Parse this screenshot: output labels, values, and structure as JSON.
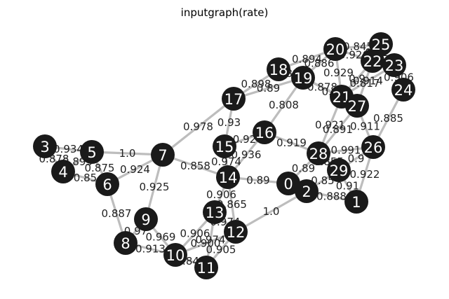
{
  "title": "inputgraph(rate)",
  "colors": {
    "edge": "#bdbdbd",
    "node": "#1a1a1a",
    "node_text": "#ffffff"
  },
  "graph": {
    "nodes": [
      "0",
      "1",
      "2",
      "3",
      "4",
      "5",
      "6",
      "7",
      "8",
      "9",
      "10",
      "11",
      "12",
      "13",
      "14",
      "15",
      "16",
      "17",
      "18",
      "19",
      "20",
      "21",
      "22",
      "23",
      "24",
      "25",
      "26",
      "27",
      "28",
      "29"
    ],
    "edges": [
      {
        "source": "3",
        "target": "5",
        "label": "0.934"
      },
      {
        "source": "3",
        "target": "4",
        "label": "0.878"
      },
      {
        "source": "4",
        "target": "5",
        "label": "0.893"
      },
      {
        "source": "4",
        "target": "6",
        "label": "0.85"
      },
      {
        "source": "5",
        "target": "7",
        "label": "1.0"
      },
      {
        "source": "5",
        "target": "6",
        "label": "0.875"
      },
      {
        "source": "6",
        "target": "7",
        "label": "0.924"
      },
      {
        "source": "6",
        "target": "8",
        "label": "0.887"
      },
      {
        "source": "7",
        "target": "9",
        "label": "0.925"
      },
      {
        "source": "7",
        "target": "17",
        "label": "0.978"
      },
      {
        "source": "7",
        "target": "14",
        "label": "0.858"
      },
      {
        "source": "8",
        "target": "9",
        "label": "0.97"
      },
      {
        "source": "8",
        "target": "10",
        "label": "0.913"
      },
      {
        "source": "9",
        "target": "10",
        "label": "0.969"
      },
      {
        "source": "10",
        "target": "13",
        "label": "0.906"
      },
      {
        "source": "10",
        "target": "12",
        "label": "0.900"
      },
      {
        "source": "10",
        "target": "11",
        "label": "0.841"
      },
      {
        "source": "11",
        "target": "12",
        "label": "0.905"
      },
      {
        "source": "11",
        "target": "13",
        "label": "0.974"
      },
      {
        "source": "12",
        "target": "13",
        "label": "0.974"
      },
      {
        "source": "12",
        "target": "14",
        "label": "0.865"
      },
      {
        "source": "12",
        "target": "2",
        "label": "1.0"
      },
      {
        "source": "13",
        "target": "14",
        "label": "0.906"
      },
      {
        "source": "14",
        "target": "15",
        "label": "0.974"
      },
      {
        "source": "14",
        "target": "0",
        "label": "0.89"
      },
      {
        "source": "14",
        "target": "16",
        "label": "0.936"
      },
      {
        "source": "15",
        "target": "16",
        "label": "0.92"
      },
      {
        "source": "15",
        "target": "17",
        "label": "0.93"
      },
      {
        "source": "17",
        "target": "18",
        "label": "0.898"
      },
      {
        "source": "17",
        "target": "19",
        "label": "0.89"
      },
      {
        "source": "16",
        "target": "19",
        "label": "0.808"
      },
      {
        "source": "16",
        "target": "28",
        "label": "0.919"
      },
      {
        "source": "18",
        "target": "19",
        "label": "0.894"
      },
      {
        "source": "18",
        "target": "20",
        "label": "0.894"
      },
      {
        "source": "19",
        "target": "20",
        "label": "0.886"
      },
      {
        "source": "19",
        "target": "21",
        "label": "0.878"
      },
      {
        "source": "19",
        "target": "27",
        "label": "0.8"
      },
      {
        "source": "20",
        "target": "22",
        "label": "0.926"
      },
      {
        "source": "20",
        "target": "25",
        "label": "0.845"
      },
      {
        "source": "20",
        "target": "21",
        "label": "0.929"
      },
      {
        "source": "21",
        "target": "22",
        "label": "0.9"
      },
      {
        "source": "21",
        "target": "23",
        "label": "0.914"
      },
      {
        "source": "21",
        "target": "28",
        "label": "0.921"
      },
      {
        "source": "22",
        "target": "25",
        "label": "0.91"
      },
      {
        "source": "22",
        "target": "23",
        "label": "0.83"
      },
      {
        "source": "22",
        "target": "27",
        "label": "0.817"
      },
      {
        "source": "23",
        "target": "24",
        "label": "0.906"
      },
      {
        "source": "24",
        "target": "26",
        "label": "0.885"
      },
      {
        "source": "27",
        "target": "26",
        "label": "0.911"
      },
      {
        "source": "27",
        "target": "28",
        "label": "0.891"
      },
      {
        "source": "26",
        "target": "28",
        "label": "0.991"
      },
      {
        "source": "26",
        "target": "29",
        "label": "0.9"
      },
      {
        "source": "26",
        "target": "1",
        "label": "0.922"
      },
      {
        "source": "28",
        "target": "29",
        "label": "0.855"
      },
      {
        "source": "28",
        "target": "0",
        "label": "0.89"
      },
      {
        "source": "29",
        "target": "1",
        "label": "0.91"
      },
      {
        "source": "29",
        "target": "2",
        "label": "0.85"
      },
      {
        "source": "0",
        "target": "2",
        "label": "0.9"
      },
      {
        "source": "2",
        "target": "1",
        "label": "0.888"
      }
    ]
  }
}
